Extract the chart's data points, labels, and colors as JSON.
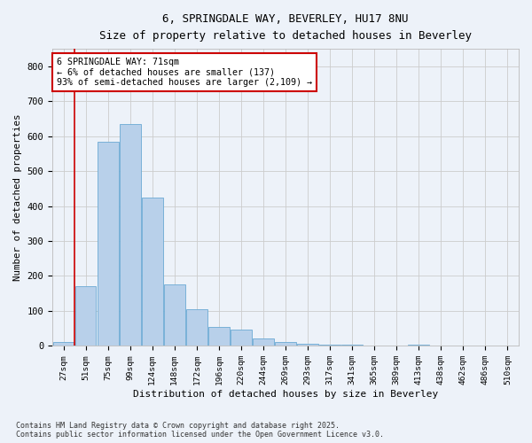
{
  "title_line1": "6, SPRINGDALE WAY, BEVERLEY, HU17 8NU",
  "title_line2": "Size of property relative to detached houses in Beverley",
  "xlabel": "Distribution of detached houses by size in Beverley",
  "ylabel": "Number of detached properties",
  "categories": [
    "27sqm",
    "51sqm",
    "75sqm",
    "99sqm",
    "124sqm",
    "148sqm",
    "172sqm",
    "196sqm",
    "220sqm",
    "244sqm",
    "269sqm",
    "293sqm",
    "317sqm",
    "341sqm",
    "365sqm",
    "389sqm",
    "413sqm",
    "438sqm",
    "462sqm",
    "486sqm",
    "510sqm"
  ],
  "values": [
    10,
    170,
    585,
    635,
    425,
    175,
    105,
    55,
    45,
    20,
    10,
    6,
    4,
    2,
    0,
    0,
    2,
    0,
    0,
    0,
    1
  ],
  "bar_color": "#b8d0ea",
  "bar_edge_color": "#6aaad4",
  "grid_color": "#cccccc",
  "annotation_box_color": "#cc0000",
  "property_line_color": "#cc0000",
  "annotation_text_line1": "6 SPRINGDALE WAY: 71sqm",
  "annotation_text_line2": "← 6% of detached houses are smaller (137)",
  "annotation_text_line3": "93% of semi-detached houses are larger (2,109) →",
  "ylim": [
    0,
    850
  ],
  "yticks": [
    0,
    100,
    200,
    300,
    400,
    500,
    600,
    700,
    800
  ],
  "footnote": "Contains HM Land Registry data © Crown copyright and database right 2025.\nContains public sector information licensed under the Open Government Licence v3.0.",
  "background_color": "#edf2f9"
}
